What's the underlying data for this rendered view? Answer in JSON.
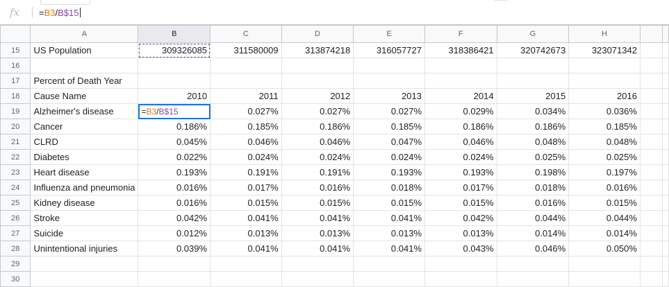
{
  "formula_bar": {
    "fx_label": "fx",
    "formula_parts": [
      {
        "text": "=",
        "kind": "plain"
      },
      {
        "text": "B3",
        "kind": "ref-a"
      },
      {
        "text": "/",
        "kind": "plain"
      },
      {
        "text": "B$15",
        "kind": "ref-b"
      }
    ]
  },
  "columns": [
    "A",
    "B",
    "C",
    "D",
    "E",
    "F",
    "G",
    "H",
    ""
  ],
  "selected_column": "B",
  "rows": [
    {
      "num": "15",
      "cells": [
        "US Population",
        "309326085",
        "311580009",
        "313874218",
        "316057727",
        "318386421",
        "320742673",
        "323071342",
        ""
      ]
    },
    {
      "num": "16",
      "cells": [
        "",
        "",
        "",
        "",
        "",
        "",
        "",
        "",
        ""
      ]
    },
    {
      "num": "17",
      "cells": [
        "Percent of Death Year",
        "",
        "",
        "",
        "",
        "",
        "",
        "",
        ""
      ]
    },
    {
      "num": "18",
      "cells": [
        "Cause Name",
        "2010",
        "2011",
        "2012",
        "2013",
        "2014",
        "2015",
        "2016",
        ""
      ]
    },
    {
      "num": "19",
      "cells": [
        "Alzheimer's disease",
        "",
        "0.027%",
        "0.027%",
        "0.027%",
        "0.029%",
        "0.034%",
        "0.036%",
        ""
      ]
    },
    {
      "num": "20",
      "cells": [
        "Cancer",
        "0.186%",
        "0.185%",
        "0.186%",
        "0.185%",
        "0.186%",
        "0.186%",
        "0.185%",
        ""
      ]
    },
    {
      "num": "21",
      "cells": [
        "CLRD",
        "0.045%",
        "0.046%",
        "0.046%",
        "0.047%",
        "0.046%",
        "0.048%",
        "0.048%",
        ""
      ]
    },
    {
      "num": "22",
      "cells": [
        "Diabetes",
        "0.022%",
        "0.024%",
        "0.024%",
        "0.024%",
        "0.024%",
        "0.025%",
        "0.025%",
        ""
      ]
    },
    {
      "num": "23",
      "cells": [
        "Heart disease",
        "0.193%",
        "0.191%",
        "0.191%",
        "0.193%",
        "0.193%",
        "0.198%",
        "0.197%",
        ""
      ]
    },
    {
      "num": "24",
      "cells": [
        "Influenza and pneumonia",
        "0.016%",
        "0.017%",
        "0.016%",
        "0.018%",
        "0.017%",
        "0.018%",
        "0.016%",
        ""
      ]
    },
    {
      "num": "25",
      "cells": [
        "Kidney disease",
        "0.016%",
        "0.015%",
        "0.015%",
        "0.015%",
        "0.015%",
        "0.016%",
        "0.015%",
        ""
      ]
    },
    {
      "num": "26",
      "cells": [
        "Stroke",
        "0.042%",
        "0.041%",
        "0.041%",
        "0.041%",
        "0.042%",
        "0.044%",
        "0.044%",
        ""
      ]
    },
    {
      "num": "27",
      "cells": [
        "Suicide",
        "0.012%",
        "0.013%",
        "0.013%",
        "0.013%",
        "0.013%",
        "0.014%",
        "0.014%",
        ""
      ]
    },
    {
      "num": "28",
      "cells": [
        "Unintentional injuries",
        "0.039%",
        "0.041%",
        "0.041%",
        "0.041%",
        "0.043%",
        "0.046%",
        "0.050%",
        ""
      ]
    },
    {
      "num": "29",
      "cells": [
        "",
        "",
        "",
        "",
        "",
        "",
        "",
        "",
        ""
      ]
    },
    {
      "num": "30",
      "cells": [
        "",
        "",
        "",
        "",
        "",
        "",
        "",
        "",
        ""
      ]
    }
  ],
  "active_cell": {
    "row": "19",
    "col": "B"
  },
  "copy_source_cell": {
    "row": "15",
    "col": "B"
  },
  "colors": {
    "selection": "#1a73e8",
    "ref_a": "#e67c00",
    "ref_b": "#8e44ad"
  }
}
